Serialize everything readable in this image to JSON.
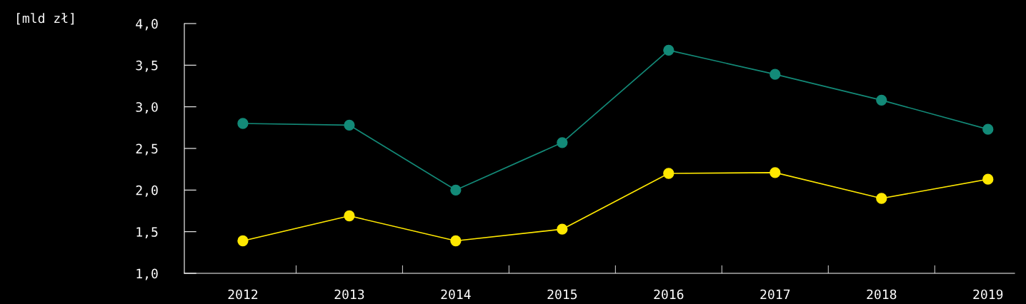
{
  "chart_data": {
    "type": "line",
    "ylabel": "[mld zł]",
    "categories": [
      "2012",
      "2013",
      "2014",
      "2015",
      "2016",
      "2017",
      "2018",
      "2019"
    ],
    "series": [
      {
        "color": "#138a78",
        "values": [
          2.8,
          2.78,
          2.0,
          2.57,
          3.68,
          3.39,
          3.08,
          2.73
        ]
      },
      {
        "color": "#ffe800",
        "values": [
          1.39,
          1.69,
          1.39,
          1.53,
          2.2,
          2.21,
          1.9,
          2.13
        ]
      }
    ],
    "ylim": [
      1.0,
      4.0
    ],
    "yticks": [
      {
        "value": 1.0,
        "label": "1,0"
      },
      {
        "value": 1.5,
        "label": "1,5"
      },
      {
        "value": 2.0,
        "label": "2,0"
      },
      {
        "value": 2.5,
        "label": "2,5"
      },
      {
        "value": 3.0,
        "label": "3,0"
      },
      {
        "value": 3.5,
        "label": "3,5"
      },
      {
        "value": 4.0,
        "label": "4,0"
      }
    ],
    "grid": false,
    "legend": false,
    "marker": "circle",
    "line_style": "solid"
  }
}
